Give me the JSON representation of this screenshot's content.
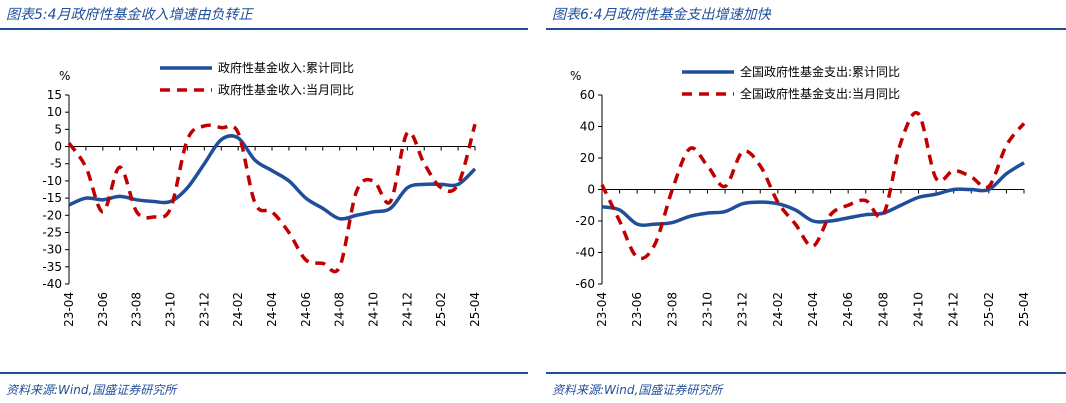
{
  "left": {
    "title": "图表5:4月政府性基金收入增速由负转正",
    "source": "资料来源:Wind,国盛证券研究所",
    "chart_data": {
      "type": "line",
      "unit": "%",
      "x": [
        "23-04",
        "23-05",
        "23-06",
        "23-07",
        "23-08",
        "23-09",
        "23-10",
        "23-11",
        "23-12",
        "24-01",
        "24-02",
        "24-03",
        "24-04",
        "24-05",
        "24-06",
        "24-07",
        "24-08",
        "24-09",
        "24-10",
        "24-11",
        "24-12",
        "25-01",
        "25-02",
        "25-03",
        "25-04"
      ],
      "xticks": [
        "23-04",
        "23-06",
        "23-08",
        "23-10",
        "23-12",
        "24-02",
        "24-04",
        "24-06",
        "24-08",
        "24-10",
        "24-12",
        "25-02",
        "25-04"
      ],
      "yticks": [
        15,
        10,
        5,
        0,
        -5,
        -10,
        -15,
        -20,
        -25,
        -30,
        -35,
        -40
      ],
      "ylim": [
        -40,
        15
      ],
      "legend_position": "top",
      "series": [
        {
          "name": "政府性基金收入:累计同比",
          "color": "#1f4e9a",
          "style": "solid",
          "values": [
            -17,
            -15,
            -15.5,
            -14.5,
            -15.5,
            -16,
            -16,
            -12,
            -5,
            2,
            2.5,
            -4,
            -7,
            -10,
            -15,
            -18,
            -21,
            -20,
            -19,
            -18,
            -12,
            -11,
            -11,
            -11,
            -6.5
          ]
        },
        {
          "name": "政府性基金收入:当月同比",
          "color": "#c00000",
          "style": "dashed",
          "values": [
            1,
            -6,
            -19,
            -6,
            -19,
            -20.5,
            -18,
            2,
            6,
            5.5,
            4,
            -16.5,
            -19,
            -25,
            -33,
            -34,
            -35,
            -13,
            -10,
            -16,
            4,
            -5,
            -12,
            -11,
            6.5
          ]
        }
      ]
    }
  },
  "right": {
    "title": "图表6:4月政府性基金支出增速加快",
    "source": "资料来源:Wind,国盛证券研究所",
    "chart_data": {
      "type": "line",
      "unit": "%",
      "x": [
        "23-04",
        "23-05",
        "23-06",
        "23-07",
        "23-08",
        "23-09",
        "23-10",
        "23-11",
        "23-12",
        "24-01",
        "24-02",
        "24-03",
        "24-04",
        "24-05",
        "24-06",
        "24-07",
        "24-08",
        "24-09",
        "24-10",
        "24-11",
        "24-12",
        "25-01",
        "25-02",
        "25-03",
        "25-04"
      ],
      "xticks": [
        "23-04",
        "23-06",
        "23-08",
        "23-10",
        "23-12",
        "24-02",
        "24-04",
        "24-06",
        "24-08",
        "24-10",
        "24-12",
        "25-02",
        "25-04"
      ],
      "yticks": [
        60,
        40,
        20,
        0,
        -20,
        -40,
        -60
      ],
      "ylim": [
        -60,
        60
      ],
      "legend_position": "top",
      "series": [
        {
          "name": "全国政府性基金支出:累计同比",
          "color": "#1f4e9a",
          "style": "solid",
          "values": [
            -11,
            -13,
            -22,
            -22,
            -21,
            -17,
            -15,
            -14,
            -9,
            -8,
            -9,
            -13,
            -20,
            -20,
            -18,
            -16,
            -15,
            -10,
            -5,
            -3,
            0,
            0,
            0,
            10,
            17
          ]
        },
        {
          "name": "全国政府性基金支出:当月同比",
          "color": "#c00000",
          "style": "dashed",
          "values": [
            3,
            -20,
            -43,
            -35,
            0,
            26,
            15,
            2,
            24,
            15,
            -8,
            -22,
            -36,
            -16,
            -10,
            -7,
            -16,
            30,
            48,
            7,
            12,
            8,
            2,
            28,
            42
          ]
        }
      ]
    }
  }
}
